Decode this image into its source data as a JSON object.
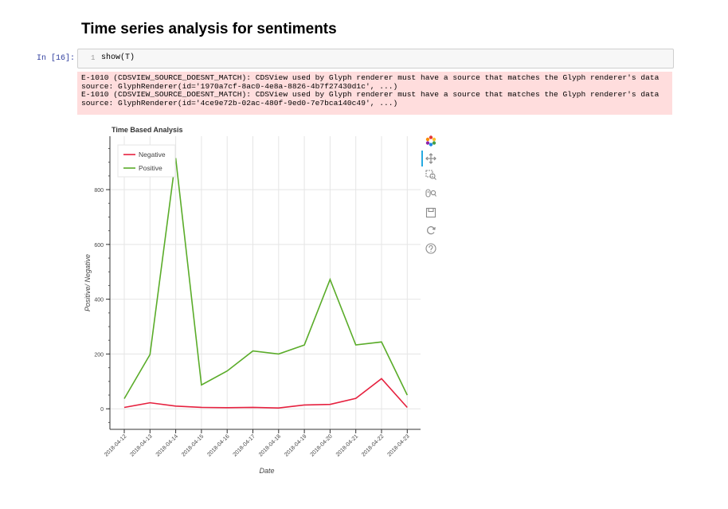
{
  "page": {
    "heading": "Time series analysis for sentiments"
  },
  "cell": {
    "prompt": "In [16]:",
    "line_number": "1",
    "code": "show(T)"
  },
  "stderr": {
    "lines": [
      "E-1010 (CDSVIEW_SOURCE_DOESNT_MATCH): CDSView used by Glyph renderer must have a source that matches the Glyph renderer's data",
      "source: GlyphRenderer(id='1970a7cf-8ac0-4e8a-8826-4b7f27430d1c', ...)",
      "E-1010 (CDSVIEW_SOURCE_DOESNT_MATCH): CDSView used by Glyph renderer must have a source that matches the Glyph renderer's data",
      "source: GlyphRenderer(id='4ce9e72b-02ac-480f-9ed0-7e7bca140c49', ...)"
    ]
  },
  "toolbar": {
    "tools": [
      "bokeh-logo-icon",
      "pan-icon",
      "box-zoom-icon",
      "wheel-zoom-icon",
      "save-icon",
      "reset-icon",
      "help-icon"
    ]
  },
  "chart_data": {
    "type": "line",
    "title": "Time Based Analysis",
    "xlabel": "Date",
    "ylabel": "Positive/ Negative",
    "x": [
      "2018-04-12",
      "2018-04-13",
      "2018-04-14",
      "2018-04-15",
      "2018-04-16",
      "2018-04-17",
      "2018-04-18",
      "2018-04-19",
      "2018-04-20",
      "2018-04-21",
      "2018-04-22",
      "2018-04-23"
    ],
    "yticks": [
      0,
      200,
      400,
      600,
      800
    ],
    "ylim": [
      -75,
      995
    ],
    "grid": true,
    "legend_position": "top-left",
    "series": [
      {
        "name": "Negative",
        "color": "#e6213f",
        "values": [
          5,
          22,
          10,
          5,
          4,
          5,
          3,
          14,
          16,
          38,
          110,
          5
        ]
      },
      {
        "name": "Positive",
        "color": "#5aac29",
        "values": [
          37,
          198,
          915,
          87,
          138,
          211,
          200,
          233,
          472,
          233,
          244,
          50
        ]
      }
    ]
  }
}
